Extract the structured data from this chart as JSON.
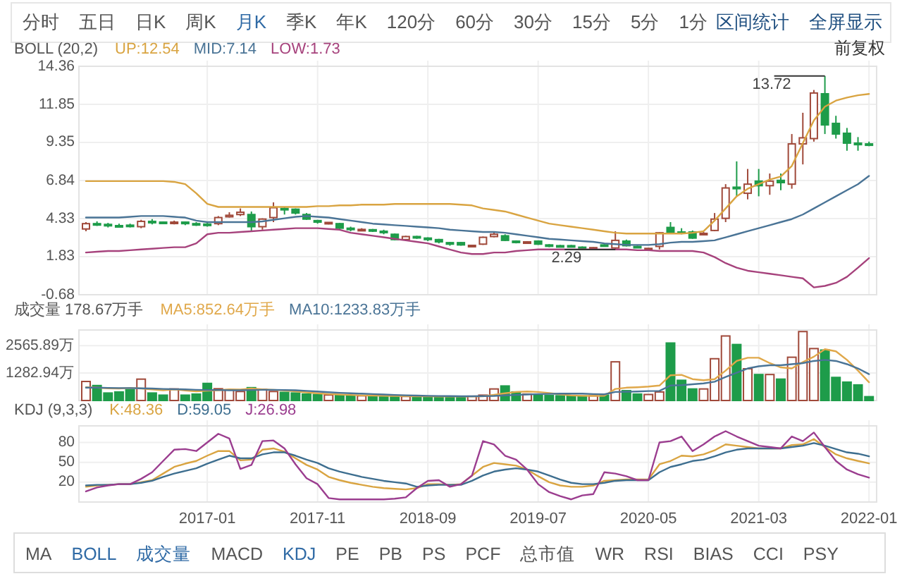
{
  "chart_data": [
    {
      "type": "other",
      "annotations": [
        "分时",
        "五日",
        "日K",
        "周K",
        "月K",
        "季K",
        "年K",
        "120分",
        "60分",
        "30分",
        "15分",
        "5分",
        "1分",
        "区间统计",
        "全屏显示"
      ],
      "colors": [
        "#555555",
        "#555555",
        "#555555",
        "#555555",
        "#2f6aa5",
        "#555555",
        "#555555",
        "#555555",
        "#555555",
        "#555555",
        "#555555",
        "#555555",
        "#555555",
        "#1f4f80",
        "#1f4f80"
      ]
    },
    {
      "type": "candlestick",
      "title": "BOLL (20,2)",
      "legend": "top left",
      "grid": true,
      "tick_labels": "y",
      "x": [
        "2016-02",
        "2016-03",
        "2016-04",
        "2016-05",
        "2016-06",
        "2016-07",
        "2016-08",
        "2016-09",
        "2016-10",
        "2016-11",
        "2016-12",
        "2017-01",
        "2017-02",
        "2017-03",
        "2017-04",
        "2017-05",
        "2017-06",
        "2017-07",
        "2017-08",
        "2017-09",
        "2017-10",
        "2017-11",
        "2017-12",
        "2018-01",
        "2018-02",
        "2018-03",
        "2018-04",
        "2018-05",
        "2018-06",
        "2018-07",
        "2018-08",
        "2018-09",
        "2018-10",
        "2018-11",
        "2018-12",
        "2019-01",
        "2019-02",
        "2019-03",
        "2019-04",
        "2019-05",
        "2019-06",
        "2019-07",
        "2019-08",
        "2019-09",
        "2019-10",
        "2019-11",
        "2019-12",
        "2020-01",
        "2020-02",
        "2020-03",
        "2020-04",
        "2020-05",
        "2020-06",
        "2020-07",
        "2020-08",
        "2020-09",
        "2020-10",
        "2020-11",
        "2020-12",
        "2021-01",
        "2021-02",
        "2021-03",
        "2021-04",
        "2021-05",
        "2021-06",
        "2021-07",
        "2021-08",
        "2021-09",
        "2021-10",
        "2021-11",
        "2021-12",
        "2022-01"
      ],
      "ohlc": [
        [
          3.65,
          4.1,
          3.5,
          4.0
        ],
        [
          4.0,
          4.15,
          3.85,
          3.95
        ],
        [
          3.95,
          4.05,
          3.75,
          3.87
        ],
        [
          3.87,
          4.0,
          3.75,
          3.85
        ],
        [
          3.9,
          4.0,
          3.75,
          3.85
        ],
        [
          3.8,
          4.25,
          3.7,
          4.15
        ],
        [
          4.15,
          4.3,
          3.95,
          4.12
        ],
        [
          4.1,
          4.15,
          4.0,
          4.05
        ],
        [
          4.05,
          4.2,
          3.95,
          4.1
        ],
        [
          4.1,
          4.15,
          3.9,
          4.0
        ],
        [
          4.0,
          4.1,
          3.85,
          3.97
        ],
        [
          3.97,
          4.05,
          3.8,
          3.9
        ],
        [
          4.0,
          4.5,
          3.9,
          4.4
        ],
        [
          4.45,
          4.75,
          4.4,
          4.55
        ],
        [
          4.6,
          5.0,
          4.5,
          4.75
        ],
        [
          4.6,
          4.8,
          3.5,
          3.8
        ],
        [
          3.8,
          4.35,
          3.6,
          4.3
        ],
        [
          4.4,
          5.4,
          4.1,
          5.05
        ],
        [
          5.0,
          5.1,
          4.6,
          4.95
        ],
        [
          4.95,
          5.0,
          4.6,
          4.7
        ],
        [
          4.6,
          4.7,
          4.25,
          4.3
        ],
        [
          4.2,
          4.25,
          4.0,
          4.1
        ],
        [
          4.05,
          4.1,
          3.95,
          4.08
        ],
        [
          4.0,
          4.05,
          3.65,
          3.7
        ],
        [
          3.7,
          3.8,
          3.5,
          3.65
        ],
        [
          3.6,
          3.7,
          3.55,
          3.62
        ],
        [
          3.6,
          3.65,
          3.45,
          3.55
        ],
        [
          3.5,
          3.6,
          3.3,
          3.45
        ],
        [
          3.3,
          3.35,
          2.9,
          2.95
        ],
        [
          2.95,
          3.2,
          2.9,
          3.15
        ],
        [
          3.15,
          3.2,
          3.0,
          3.1
        ],
        [
          3.05,
          3.1,
          2.85,
          2.95
        ],
        [
          2.95,
          3.0,
          2.7,
          2.8
        ],
        [
          2.75,
          2.8,
          2.55,
          2.65
        ],
        [
          2.75,
          2.8,
          2.55,
          2.6
        ],
        [
          2.55,
          2.6,
          2.5,
          2.57
        ],
        [
          2.65,
          3.15,
          2.6,
          3.1
        ],
        [
          3.15,
          3.45,
          3.1,
          3.3
        ],
        [
          3.2,
          3.3,
          2.85,
          2.9
        ],
        [
          2.85,
          2.9,
          2.7,
          2.8
        ],
        [
          2.78,
          2.85,
          2.75,
          2.8
        ],
        [
          2.85,
          2.9,
          2.6,
          2.65
        ],
        [
          2.6,
          2.65,
          2.45,
          2.55
        ],
        [
          2.55,
          2.6,
          2.45,
          2.5
        ],
        [
          2.55,
          2.6,
          2.45,
          2.5
        ],
        [
          2.45,
          2.5,
          2.35,
          2.4
        ],
        [
          2.38,
          2.45,
          2.35,
          2.42
        ],
        [
          2.6,
          2.65,
          2.5,
          2.55
        ],
        [
          2.4,
          3.5,
          2.29,
          2.9
        ],
        [
          2.85,
          2.95,
          2.5,
          2.55
        ],
        [
          2.5,
          2.55,
          2.4,
          2.45
        ],
        [
          2.33,
          2.4,
          2.3,
          2.37
        ],
        [
          2.5,
          3.45,
          2.3,
          3.4
        ],
        [
          3.75,
          4.1,
          3.35,
          3.4
        ],
        [
          3.45,
          3.7,
          3.3,
          3.42
        ],
        [
          3.45,
          3.55,
          3.0,
          3.05
        ],
        [
          3.32,
          3.45,
          3.25,
          3.36
        ],
        [
          3.55,
          4.7,
          3.5,
          4.3
        ],
        [
          4.35,
          6.6,
          4.1,
          6.35
        ],
        [
          6.4,
          8.1,
          5.8,
          6.3
        ],
        [
          6.0,
          7.6,
          5.6,
          6.6
        ],
        [
          6.8,
          7.6,
          5.8,
          6.5
        ],
        [
          6.5,
          7.3,
          5.9,
          6.8
        ],
        [
          6.85,
          7.3,
          6.2,
          6.7
        ],
        [
          6.6,
          9.9,
          6.3,
          9.25
        ],
        [
          9.25,
          11.3,
          7.9,
          9.65
        ],
        [
          9.6,
          12.8,
          9.4,
          12.6
        ],
        [
          12.55,
          13.72,
          9.9,
          10.5
        ],
        [
          10.6,
          11.1,
          9.6,
          9.9
        ],
        [
          9.95,
          10.3,
          8.8,
          9.3
        ],
        [
          9.3,
          9.7,
          8.8,
          9.2
        ],
        [
          9.25,
          9.4,
          9.1,
          9.2
        ]
      ],
      "series": [
        {
          "type": "line",
          "name": "UP:12.54",
          "color": "#d9a441",
          "values": [
            6.8,
            6.8,
            6.8,
            6.8,
            6.8,
            6.8,
            6.8,
            6.8,
            6.75,
            6.6,
            6.0,
            5.3,
            5.1,
            5.1,
            5.1,
            5.1,
            5.1,
            5.1,
            5.1,
            5.1,
            5.1,
            5.15,
            5.15,
            5.2,
            5.2,
            5.25,
            5.25,
            5.25,
            5.3,
            5.3,
            5.3,
            5.3,
            5.3,
            5.3,
            5.25,
            5.2,
            5.0,
            4.9,
            4.8,
            4.6,
            4.4,
            4.2,
            4.0,
            3.9,
            3.8,
            3.7,
            3.6,
            3.5,
            3.4,
            3.35,
            3.35,
            3.35,
            3.35,
            3.35,
            3.35,
            3.4,
            3.5,
            4.2,
            5.0,
            5.8,
            6.3,
            6.6,
            6.9,
            7.1,
            7.8,
            9.3,
            10.8,
            11.7,
            12.1,
            12.3,
            12.45,
            12.54
          ]
        },
        {
          "type": "line",
          "name": "MID:7.14",
          "color": "#4a7496",
          "values": [
            4.4,
            4.4,
            4.4,
            4.4,
            4.45,
            4.5,
            4.5,
            4.5,
            4.45,
            4.4,
            4.2,
            4.1,
            4.1,
            4.1,
            4.1,
            4.1,
            4.15,
            4.25,
            4.35,
            4.45,
            4.5,
            4.45,
            4.4,
            4.3,
            4.2,
            4.1,
            4.0,
            3.95,
            3.9,
            3.85,
            3.8,
            3.75,
            3.7,
            3.6,
            3.55,
            3.5,
            3.45,
            3.45,
            3.4,
            3.3,
            3.2,
            3.1,
            3.0,
            2.95,
            2.9,
            2.85,
            2.8,
            2.7,
            2.65,
            2.6,
            2.6,
            2.6,
            2.65,
            2.75,
            2.8,
            2.8,
            2.85,
            2.9,
            3.1,
            3.3,
            3.5,
            3.7,
            3.9,
            4.1,
            4.3,
            4.6,
            5.0,
            5.4,
            5.8,
            6.2,
            6.6,
            7.14
          ]
        },
        {
          "type": "line",
          "name": "LOW:1.73",
          "color": "#a6427c",
          "values": [
            2.1,
            2.15,
            2.2,
            2.2,
            2.25,
            2.3,
            2.35,
            2.4,
            2.45,
            2.45,
            2.7,
            3.3,
            3.4,
            3.4,
            3.45,
            3.5,
            3.55,
            3.6,
            3.65,
            3.7,
            3.7,
            3.7,
            3.65,
            3.6,
            3.4,
            3.3,
            3.2,
            3.1,
            3.0,
            2.9,
            2.8,
            2.7,
            2.5,
            2.3,
            2.1,
            2.0,
            2.0,
            2.1,
            2.1,
            2.2,
            2.25,
            2.3,
            2.3,
            2.3,
            2.3,
            2.3,
            2.3,
            2.3,
            2.3,
            2.3,
            2.25,
            2.25,
            2.2,
            2.2,
            2.2,
            2.2,
            2.1,
            1.8,
            1.4,
            1.1,
            0.9,
            0.8,
            0.7,
            0.6,
            0.5,
            0.4,
            -0.2,
            -0.1,
            0.1,
            0.5,
            1.1,
            1.73
          ]
        }
      ],
      "xlim": [
        "2016-01-12",
        "2022-01-22"
      ],
      "xticks": [
        "2017-01",
        "2017-11",
        "2018-09",
        "2019-07",
        "2020-05",
        "2021-03",
        "2022-01"
      ],
      "ylim": [
        -0.68,
        14.36
      ],
      "yticks": [
        -0.68,
        1.83,
        4.33,
        6.84,
        9.35,
        11.85,
        14.36
      ],
      "annotations": [
        "前复权",
        {
          "text": "13.72",
          "x": "2021-09",
          "y": 13.72
        },
        {
          "text": "2.29",
          "x": "2020-02",
          "y": 2.29
        }
      ]
    },
    {
      "type": "bar",
      "title": "成交量 178.67万手",
      "legend": "top left",
      "grid": true,
      "tick_labels": "y",
      "x": [
        "2016-02",
        "2016-03",
        "2016-04",
        "2016-05",
        "2016-06",
        "2016-07",
        "2016-08",
        "2016-09",
        "2016-10",
        "2016-11",
        "2016-12",
        "2017-01",
        "2017-02",
        "2017-03",
        "2017-04",
        "2017-05",
        "2017-06",
        "2017-07",
        "2017-08",
        "2017-09",
        "2017-10",
        "2017-11",
        "2017-12",
        "2018-01",
        "2018-02",
        "2018-03",
        "2018-04",
        "2018-05",
        "2018-06",
        "2018-07",
        "2018-08",
        "2018-09",
        "2018-10",
        "2018-11",
        "2018-12",
        "2019-01",
        "2019-02",
        "2019-03",
        "2019-04",
        "2019-05",
        "2019-06",
        "2019-07",
        "2019-08",
        "2019-09",
        "2019-10",
        "2019-11",
        "2019-12",
        "2020-01",
        "2020-02",
        "2020-03",
        "2020-04",
        "2020-05",
        "2020-06",
        "2020-07",
        "2020-08",
        "2020-09",
        "2020-10",
        "2020-11",
        "2020-12",
        "2021-01",
        "2021-02",
        "2021-03",
        "2021-04",
        "2021-05",
        "2021-06",
        "2021-07",
        "2021-08",
        "2021-09",
        "2021-10",
        "2021-11",
        "2021-12",
        "2022-01"
      ],
      "series": [
        {
          "type": "bar",
          "color": "#a0493a",
          "values": [
            890,
            null,
            null,
            null,
            null,
            1000,
            null,
            null,
            540,
            null,
            null,
            null,
            550,
            500,
            420,
            null,
            520,
            420,
            null,
            null,
            null,
            null,
            260,
            null,
            null,
            220,
            null,
            null,
            null,
            190,
            null,
            null,
            null,
            null,
            null,
            200,
            250,
            540,
            null,
            null,
            300,
            null,
            null,
            null,
            null,
            null,
            220,
            null,
            1810,
            null,
            null,
            280,
            400,
            null,
            null,
            null,
            540,
            1955,
            3020,
            null,
            1485,
            null,
            1215,
            null,
            2025,
            3226,
            2430,
            null,
            null,
            null,
            null,
            null
          ]
        },
        {
          "type": "bar",
          "color": "#1e9c4a",
          "values": [
            null,
            700,
            350,
            400,
            510,
            null,
            350,
            250,
            null,
            250,
            300,
            800,
            null,
            null,
            null,
            600,
            null,
            null,
            380,
            350,
            300,
            280,
            null,
            250,
            230,
            null,
            200,
            210,
            200,
            null,
            200,
            190,
            180,
            170,
            190,
            null,
            null,
            null,
            680,
            400,
            null,
            250,
            230,
            220,
            200,
            210,
            null,
            250,
            null,
            460,
            300,
            null,
            null,
            2690,
            945,
            540,
            null,
            null,
            null,
            2620,
            null,
            1215,
            null,
            1000,
            null,
            null,
            null,
            2360,
            1080,
            860,
            730,
            178.67
          ]
        },
        {
          "type": "line",
          "name": "MA5:852.64万手",
          "color": "#e0a84a",
          "values": [
            620,
            600,
            570,
            560,
            590,
            560,
            520,
            480,
            520,
            470,
            430,
            460,
            480,
            520,
            510,
            560,
            520,
            500,
            470,
            430,
            380,
            340,
            300,
            280,
            260,
            240,
            230,
            220,
            210,
            205,
            200,
            195,
            190,
            185,
            185,
            190,
            200,
            270,
            340,
            400,
            420,
            400,
            350,
            290,
            240,
            220,
            215,
            220,
            540,
            600,
            620,
            650,
            700,
            1180,
            1200,
            1000,
            950,
            1000,
            1400,
            1850,
            2000,
            2000,
            1750,
            1550,
            1500,
            1800,
            2050,
            2400,
            2300,
            1900,
            1400,
            852.64
          ]
        },
        {
          "type": "line",
          "name": "MA10:1233.83万手",
          "color": "#4a7496",
          "values": [
            600,
            600,
            590,
            580,
            580,
            570,
            560,
            540,
            530,
            520,
            500,
            490,
            490,
            480,
            480,
            490,
            500,
            500,
            490,
            480,
            450,
            420,
            390,
            360,
            340,
            320,
            300,
            280,
            260,
            245,
            230,
            220,
            210,
            205,
            200,
            200,
            205,
            215,
            240,
            260,
            280,
            300,
            310,
            320,
            320,
            320,
            300,
            290,
            400,
            410,
            420,
            440,
            450,
            700,
            720,
            760,
            800,
            880,
            1100,
            1300,
            1500,
            1600,
            1650,
            1650,
            1700,
            1750,
            1850,
            1900,
            1850,
            1700,
            1500,
            1233.83
          ]
        }
      ],
      "xlim": [
        "2016-01-12",
        "2022-01-22"
      ],
      "xticks": [
        "2017-01",
        "2017-11",
        "2018-09",
        "2019-07",
        "2020-05",
        "2021-03",
        "2022-01"
      ],
      "ylim": [
        0,
        3300
      ],
      "yticks": [
        {
          "value": 1282.94,
          "label": "1282.94万"
        },
        {
          "value": 2565.89,
          "label": "2565.89万"
        }
      ]
    },
    {
      "type": "line",
      "title": "KDJ (9,3,3)",
      "legend": "top left",
      "grid": true,
      "x": [
        "2016-02",
        "2016-03",
        "2016-04",
        "2016-05",
        "2016-06",
        "2016-07",
        "2016-08",
        "2016-09",
        "2016-10",
        "2016-11",
        "2016-12",
        "2017-01",
        "2017-02",
        "2017-03",
        "2017-04",
        "2017-05",
        "2017-06",
        "2017-07",
        "2017-08",
        "2017-09",
        "2017-10",
        "2017-11",
        "2017-12",
        "2018-01",
        "2018-02",
        "2018-03",
        "2018-04",
        "2018-05",
        "2018-06",
        "2018-07",
        "2018-08",
        "2018-09",
        "2018-10",
        "2018-11",
        "2018-12",
        "2019-01",
        "2019-02",
        "2019-03",
        "2019-04",
        "2019-05",
        "2019-06",
        "2019-07",
        "2019-08",
        "2019-09",
        "2019-10",
        "2019-11",
        "2019-12",
        "2020-01",
        "2020-02",
        "2020-03",
        "2020-04",
        "2020-05",
        "2020-06",
        "2020-07",
        "2020-08",
        "2020-09",
        "2020-10",
        "2020-11",
        "2020-12",
        "2021-01",
        "2021-02",
        "2021-03",
        "2021-04",
        "2021-05",
        "2021-06",
        "2021-07",
        "2021-08",
        "2021-09",
        "2021-10",
        "2021-11",
        "2021-12",
        "2022-01"
      ],
      "series": [
        {
          "name": "K:48.36",
          "color": "#d9a441",
          "values": [
            13,
            15,
            16,
            17,
            17,
            20,
            23,
            33,
            43,
            48,
            52,
            60,
            67,
            67,
            53,
            54,
            69,
            71,
            66,
            56,
            46,
            39,
            28,
            23,
            19,
            16,
            13,
            11,
            10,
            9,
            11,
            17,
            17,
            16,
            17,
            30,
            43,
            49,
            47,
            45,
            39,
            29,
            20,
            15,
            13,
            13,
            15,
            22,
            23,
            24,
            24,
            24,
            47,
            52,
            60,
            59,
            62,
            68,
            77,
            75,
            73,
            71,
            71,
            71,
            76,
            77,
            85,
            73,
            62,
            56,
            52,
            48.36
          ]
        },
        {
          "name": "D:59.05",
          "color": "#3d6e8f",
          "values": [
            15,
            16,
            16,
            17,
            17,
            19,
            22,
            28,
            33,
            37,
            41,
            48,
            54,
            60,
            56,
            56,
            62,
            65,
            65,
            60,
            54,
            49,
            41,
            36,
            32,
            28,
            25,
            22,
            20,
            18,
            13,
            15,
            16,
            16,
            16,
            22,
            30,
            36,
            39,
            41,
            39,
            36,
            30,
            24,
            19,
            17,
            17,
            19,
            22,
            23,
            23,
            23,
            35,
            43,
            47,
            52,
            54,
            59,
            65,
            69,
            71,
            71,
            71,
            71,
            73,
            75,
            79,
            75,
            70,
            65,
            63,
            59.05
          ]
        },
        {
          "name": "J:26.98",
          "color": "#9b3d8f",
          "values": [
            6,
            12,
            15,
            17,
            17,
            25,
            35,
            52,
            69,
            70,
            67,
            80,
            93,
            86,
            40,
            46,
            82,
            83,
            71,
            47,
            26,
            17,
            -4,
            -6,
            -6,
            -6,
            -6,
            -6,
            -5,
            -3,
            11,
            22,
            23,
            13,
            17,
            30,
            82,
            77,
            60,
            54,
            39,
            17,
            5,
            -1,
            -6,
            0,
            2,
            35,
            33,
            29,
            23,
            23,
            80,
            82,
            89,
            67,
            77,
            89,
            97,
            89,
            82,
            75,
            73,
            71,
            89,
            82,
            95,
            73,
            52,
            39,
            32,
            26.98
          ]
        }
      ],
      "xlim": [
        "2016-01-12",
        "2022-01-22"
      ],
      "xticks": [
        "2017-01",
        "2017-11",
        "2018-09",
        "2019-07",
        "2020-05",
        "2021-03",
        "2022-01"
      ],
      "ylim": [
        -10,
        105
      ],
      "yticks": [
        20,
        50,
        80
      ]
    },
    {
      "type": "other",
      "annotations": [
        "MA",
        "BOLL",
        "成交量",
        "MACD",
        "KDJ",
        "PE",
        "PB",
        "PS",
        "PCF",
        "总市值",
        "WR",
        "RSI",
        "BIAS",
        "CCI",
        "PSY"
      ],
      "colors": [
        "#555555",
        "#2f6aa5",
        "#2f6aa5",
        "#555555",
        "#2f6aa5",
        "#555555",
        "#555555",
        "#555555",
        "#555555",
        "#555555",
        "#555555",
        "#555555",
        "#555555",
        "#555555",
        "#555555"
      ]
    }
  ]
}
